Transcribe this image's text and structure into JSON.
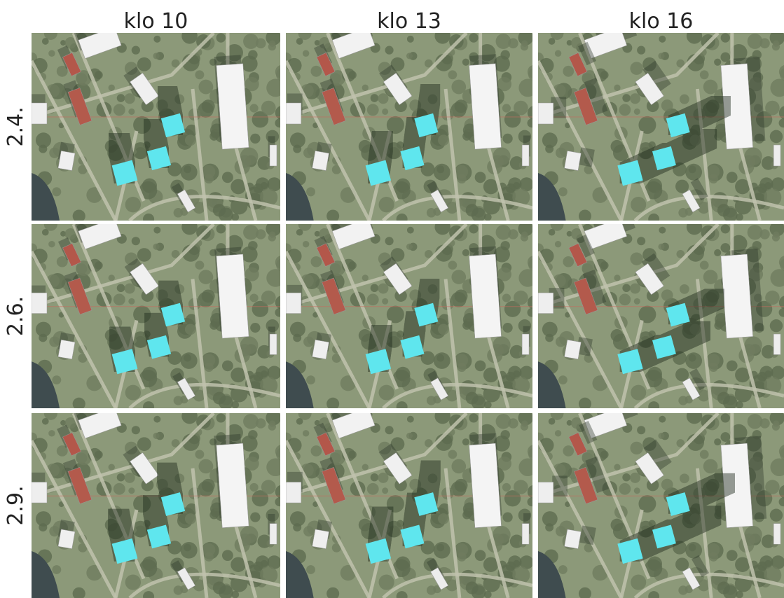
{
  "columns": [
    "klo 10",
    "klo 13",
    "klo 16"
  ],
  "rows": [
    "2.4.",
    "2.6.",
    "2.9."
  ]
}
